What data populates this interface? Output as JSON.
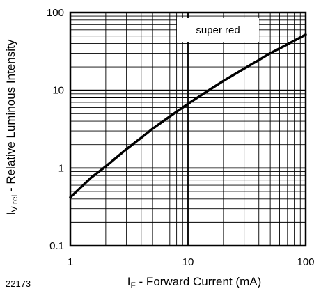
{
  "figure_id": "22173",
  "chart_data": {
    "type": "line",
    "xlabel": "I_F - Forward Current (mA)",
    "xlabel_main": "I",
    "xlabel_sub": "F",
    "xlabel_rest": " - Forward Current (mA)",
    "ylabel": "I_V rel - Relative Luminous Intensity",
    "ylabel_main": "I",
    "ylabel_sub": "V rel",
    "ylabel_rest": " - Relative Luminous Intensity",
    "xscale": "log",
    "yscale": "log",
    "xlim": [
      1,
      100
    ],
    "ylim": [
      0.1,
      100
    ],
    "x_ticks": [
      "1",
      "10",
      "100"
    ],
    "y_ticks": [
      "0.1",
      "1",
      "10",
      "100"
    ],
    "grid": true,
    "legend_position": "top-right",
    "series": [
      {
        "name": "super red",
        "color": "#000000",
        "x": [
          1,
          1.5,
          2,
          3,
          4,
          5,
          7,
          10,
          15,
          20,
          30,
          40,
          50,
          70,
          100
        ],
        "y": [
          0.42,
          0.75,
          1.05,
          1.75,
          2.45,
          3.2,
          4.6,
          6.7,
          10,
          13.2,
          19,
          24.5,
          30,
          39,
          52
        ]
      }
    ]
  }
}
